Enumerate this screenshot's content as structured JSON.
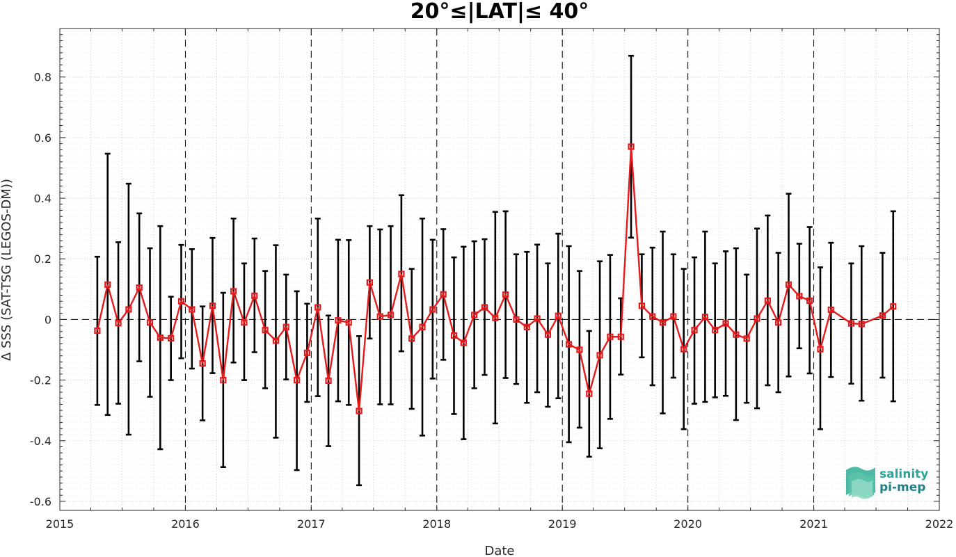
{
  "chart_data": {
    "type": "line",
    "title": "20°≤|LAT|≤ 40°",
    "xlabel": "Date",
    "ylabel": "Δ SSS (SAT-TSG (LEGOS-DM))",
    "xlim": [
      "2015-01-01",
      "2022-01-01"
    ],
    "ylim": [
      -0.63,
      0.96
    ],
    "xticks": [
      "2015",
      "2016",
      "2017",
      "2018",
      "2019",
      "2020",
      "2021",
      "2022"
    ],
    "yticks": [
      -0.6,
      -0.4,
      -0.2,
      0,
      0.2,
      0.4,
      0.6,
      0.8
    ],
    "ytick_labels": [
      "-0.6",
      "-0.4",
      "-0.2",
      "0",
      "0.2",
      "0.4",
      "0.6",
      "0.8"
    ],
    "grid": true,
    "series": [
      {
        "color": "#e6191b",
        "error_color": "#000000",
        "marker": "square",
        "dates": [
          "2015-04-20",
          "2015-05-20",
          "2015-06-20",
          "2015-07-20",
          "2015-08-20",
          "2015-09-20",
          "2015-10-20",
          "2015-11-20",
          "2015-12-20",
          "2016-01-20",
          "2016-02-20",
          "2016-03-20",
          "2016-04-20",
          "2016-05-20",
          "2016-06-20",
          "2016-07-20",
          "2016-08-20",
          "2016-09-20",
          "2016-10-20",
          "2016-11-20",
          "2016-12-20",
          "2017-01-20",
          "2017-02-20",
          "2017-03-20",
          "2017-04-20",
          "2017-05-20",
          "2017-06-20",
          "2017-07-20",
          "2017-08-20",
          "2017-09-20",
          "2017-10-20",
          "2017-11-20",
          "2017-12-20",
          "2018-01-20",
          "2018-02-20",
          "2018-03-20",
          "2018-04-20",
          "2018-05-20",
          "2018-06-20",
          "2018-07-20",
          "2018-08-20",
          "2018-09-20",
          "2018-10-20",
          "2018-11-20",
          "2018-12-20",
          "2019-01-20",
          "2019-02-20",
          "2019-03-20",
          "2019-04-20",
          "2019-05-20",
          "2019-06-20",
          "2019-07-20",
          "2019-08-20",
          "2019-09-20",
          "2019-10-20",
          "2019-11-20",
          "2019-12-20",
          "2020-01-20",
          "2020-02-20",
          "2020-03-20",
          "2020-04-20",
          "2020-05-20",
          "2020-06-20",
          "2020-07-20",
          "2020-08-20",
          "2020-09-20",
          "2020-10-20",
          "2020-11-20",
          "2020-12-20",
          "2021-01-20",
          "2021-02-20",
          "2021-04-20",
          "2021-05-20",
          "2021-07-20",
          "2021-08-20"
        ],
        "values": [
          -0.037,
          0.115,
          -0.012,
          0.033,
          0.105,
          -0.01,
          -0.06,
          -0.062,
          0.06,
          0.033,
          -0.145,
          0.045,
          -0.2,
          0.093,
          -0.01,
          0.078,
          -0.035,
          -0.07,
          -0.025,
          -0.2,
          -0.11,
          0.04,
          -0.202,
          -0.003,
          -0.01,
          -0.302,
          0.122,
          0.01,
          0.015,
          0.15,
          -0.063,
          -0.025,
          0.033,
          0.083,
          -0.053,
          -0.077,
          0.015,
          0.04,
          0.005,
          0.082,
          0.0,
          -0.025,
          0.003,
          -0.05,
          0.012,
          -0.082,
          -0.1,
          -0.245,
          -0.118,
          -0.057,
          -0.057,
          0.57,
          0.045,
          0.01,
          -0.01,
          0.01,
          -0.098,
          -0.035,
          0.008,
          -0.035,
          -0.013,
          -0.05,
          -0.063,
          0.003,
          0.062,
          -0.01,
          0.115,
          0.077,
          0.062,
          -0.098,
          0.032,
          -0.013,
          -0.015,
          0.013,
          0.043
        ],
        "upper": [
          0.207,
          0.547,
          0.255,
          0.448,
          0.35,
          0.235,
          0.308,
          0.075,
          0.246,
          0.232,
          0.043,
          0.269,
          0.088,
          0.333,
          0.185,
          0.267,
          0.16,
          0.245,
          0.148,
          0.093,
          0.052,
          0.333,
          0.013,
          0.263,
          0.262,
          -0.055,
          0.308,
          0.297,
          0.308,
          0.41,
          0.167,
          0.333,
          0.263,
          0.298,
          0.205,
          0.24,
          0.258,
          0.265,
          0.355,
          0.357,
          0.215,
          0.223,
          0.247,
          0.185,
          0.283,
          0.242,
          0.16,
          -0.038,
          0.192,
          0.213,
          0.07,
          0.87,
          0.215,
          0.237,
          0.29,
          0.215,
          0.167,
          0.205,
          0.29,
          0.185,
          0.225,
          0.235,
          0.148,
          0.3,
          0.343,
          0.22,
          0.415,
          0.25,
          0.305,
          0.172,
          0.253,
          0.185,
          0.242,
          0.22,
          0.357
        ],
        "lower": [
          -0.282,
          -0.315,
          -0.278,
          -0.38,
          -0.138,
          -0.255,
          -0.428,
          -0.2,
          -0.128,
          -0.162,
          -0.333,
          -0.177,
          -0.487,
          -0.142,
          -0.2,
          -0.108,
          -0.227,
          -0.39,
          -0.198,
          -0.497,
          -0.272,
          -0.253,
          -0.418,
          -0.27,
          -0.282,
          -0.547,
          -0.063,
          -0.28,
          -0.28,
          -0.105,
          -0.295,
          -0.383,
          -0.195,
          -0.133,
          -0.312,
          -0.395,
          -0.227,
          -0.183,
          -0.343,
          -0.193,
          -0.213,
          -0.275,
          -0.24,
          -0.288,
          -0.26,
          -0.405,
          -0.357,
          -0.453,
          -0.425,
          -0.328,
          -0.182,
          0.27,
          -0.125,
          -0.217,
          -0.31,
          -0.192,
          -0.362,
          -0.278,
          -0.272,
          -0.257,
          -0.252,
          -0.332,
          -0.275,
          -0.293,
          -0.217,
          -0.24,
          -0.188,
          -0.095,
          -0.178,
          -0.362,
          -0.19,
          -0.212,
          -0.268,
          -0.192,
          -0.27
        ]
      }
    ]
  },
  "logo": {
    "line1": "salinity",
    "line2": "pi-mep",
    "color1": "#27a99a",
    "color2": "#1f7f86"
  }
}
